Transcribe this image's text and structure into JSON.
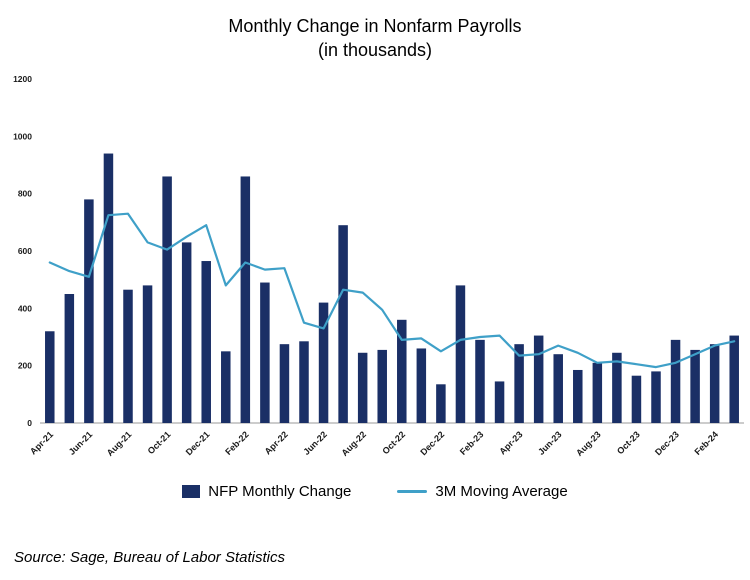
{
  "chart_data": {
    "type": "combo_bar_line",
    "title": "Monthly Change in Nonfarm Payrolls",
    "subtitle": "(in thousands)",
    "source": "Source: Sage, Bureau of Labor Statistics",
    "ylim": [
      0,
      1200
    ],
    "ytick_step": 200,
    "x_tick_every": 2,
    "grid": false,
    "legend_position": "bottom",
    "categories": [
      "Apr-21",
      "May-21",
      "Jun-21",
      "Jul-21",
      "Aug-21",
      "Sep-21",
      "Oct-21",
      "Nov-21",
      "Dec-21",
      "Jan-22",
      "Feb-22",
      "Mar-22",
      "Apr-22",
      "May-22",
      "Jun-22",
      "Jul-22",
      "Aug-22",
      "Sep-22",
      "Oct-22",
      "Nov-22",
      "Dec-22",
      "Jan-23",
      "Feb-23",
      "Mar-23",
      "Apr-23",
      "May-23",
      "Jun-23",
      "Jul-23",
      "Aug-23",
      "Sep-23",
      "Oct-23",
      "Nov-23",
      "Dec-23",
      "Jan-24",
      "Feb-24",
      "Mar-24"
    ],
    "series": [
      {
        "name": "NFP Monthly Change",
        "type": "bar",
        "color": "#1A2F66",
        "values": [
          320,
          450,
          780,
          940,
          465,
          480,
          860,
          630,
          565,
          250,
          860,
          490,
          275,
          285,
          420,
          690,
          245,
          255,
          360,
          260,
          135,
          480,
          290,
          145,
          275,
          305,
          240,
          185,
          210,
          245,
          165,
          180,
          290,
          255,
          275,
          305
        ]
      },
      {
        "name": "3M Moving Average",
        "type": "line",
        "color": "#3FA0C8",
        "values": [
          560,
          530,
          510,
          725,
          730,
          630,
          605,
          650,
          690,
          480,
          560,
          535,
          540,
          350,
          330,
          465,
          455,
          395,
          290,
          295,
          250,
          290,
          300,
          305,
          235,
          240,
          270,
          245,
          210,
          215,
          205,
          195,
          210,
          240,
          270,
          285
        ]
      }
    ]
  }
}
